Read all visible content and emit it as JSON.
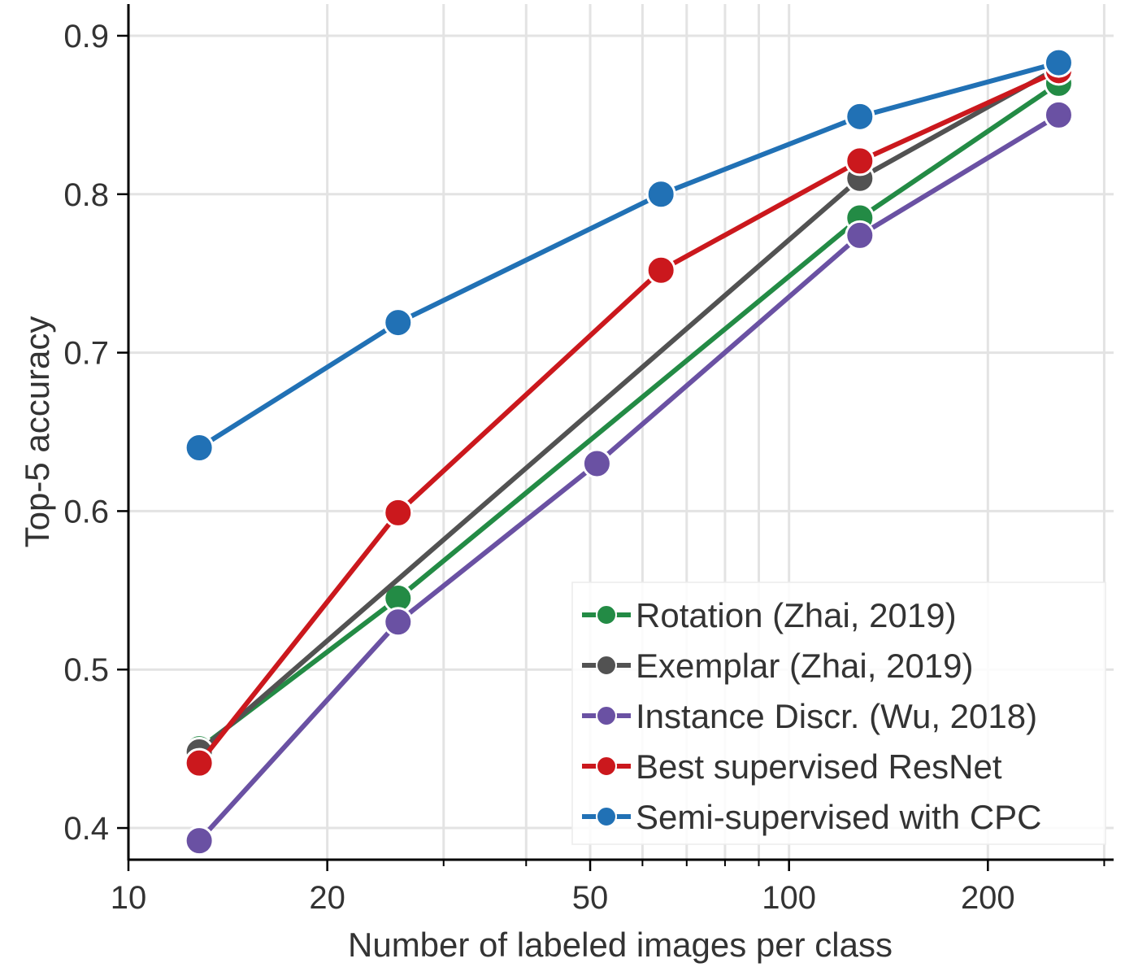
{
  "chart_data": {
    "type": "line",
    "xscale": "log",
    "xlim": [
      10,
      310
    ],
    "ylim": [
      0.38,
      0.92
    ],
    "grid": true,
    "legend_position": "lower-right",
    "xlabel": "Number of labeled images per class",
    "ylabel": "Top-5 accuracy",
    "x_ticks": [
      {
        "value": 10,
        "label": "10"
      },
      {
        "value": 20,
        "label": "20"
      },
      {
        "value": 50,
        "label": "50"
      },
      {
        "value": 100,
        "label": "100"
      },
      {
        "value": 200,
        "label": "200"
      }
    ],
    "x_minor_ticks": [
      30,
      40,
      60,
      70,
      80,
      90,
      300
    ],
    "y_ticks": [
      {
        "value": 0.4,
        "label": "0.4"
      },
      {
        "value": 0.5,
        "label": "0.5"
      },
      {
        "value": 0.6,
        "label": "0.6"
      },
      {
        "value": 0.7,
        "label": "0.7"
      },
      {
        "value": 0.8,
        "label": "0.8"
      },
      {
        "value": 0.9,
        "label": "0.9"
      }
    ],
    "series": [
      {
        "name": "Rotation (Zhai, 2019)",
        "color": "#238b45",
        "x": [
          12.8,
          25.6,
          128,
          256
        ],
        "y": [
          0.45,
          0.545,
          0.785,
          0.87
        ]
      },
      {
        "name": "Exemplar (Zhai, 2019)",
        "color": "#525252",
        "x": [
          12.8,
          128,
          256
        ],
        "y": [
          0.448,
          0.81,
          0.88
        ]
      },
      {
        "name": "Instance Discr. (Wu, 2018)",
        "color": "#6a51a3",
        "x": [
          12.8,
          25.6,
          51.2,
          128,
          256
        ],
        "y": [
          0.392,
          0.53,
          0.63,
          0.774,
          0.85
        ]
      },
      {
        "name": "Best supervised ResNet",
        "color": "#cb181d",
        "x": [
          12.8,
          25.6,
          64,
          128,
          256
        ],
        "y": [
          0.441,
          0.599,
          0.752,
          0.821,
          0.878
        ]
      },
      {
        "name": "Semi-supervised with CPC",
        "color": "#2171b5",
        "x": [
          12.8,
          25.6,
          64,
          128,
          256
        ],
        "y": [
          0.64,
          0.719,
          0.8,
          0.849,
          0.883
        ]
      }
    ]
  }
}
